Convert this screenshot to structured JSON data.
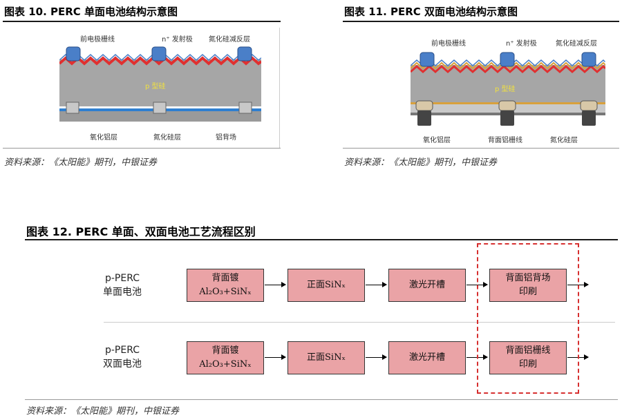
{
  "fig10": {
    "title": "图表 10. PERC 单面电池结构示意图",
    "labels": {
      "front_grid": "前电极栅线",
      "emitter": "n⁺ 发射极",
      "arc": "氮化硅减反层",
      "p_base": "p 型硅",
      "alox": "氧化铝层",
      "sinx": "氮化硅层",
      "al_bsf": "铝背场"
    },
    "source": "资料来源：《太阳能》期刊，中银证券"
  },
  "fig11": {
    "title": "图表 11. PERC 双面电池结构示意图",
    "labels": {
      "front_grid": "前电极栅线",
      "emitter": "n⁺ 发射极",
      "arc": "氮化硅减反层",
      "p_base": "p 型硅",
      "alox": "氧化铝层",
      "back_grid": "背面铝栅线",
      "sinx": "氮化硅层"
    },
    "source": "资料来源：《太阳能》期刊，中银证券"
  },
  "fig12": {
    "title": "图表 12. PERC 单面、双面电池工艺流程区别",
    "rows": [
      {
        "label_line1": "p-PERC",
        "label_line2": "单面电池",
        "steps": [
          {
            "line1": "背面镀",
            "line2": "Al₂O₃+SiNₓ"
          },
          {
            "line1": "正面SiNₓ",
            "line2": ""
          },
          {
            "line1": "激光开槽",
            "line2": ""
          },
          {
            "line1": "背面铝背场",
            "line2": "印刷"
          }
        ]
      },
      {
        "label_line1": "p-PERC",
        "label_line2": "双面电池",
        "steps": [
          {
            "line1": "背面镀",
            "line2": "Al₂O₃+SiNₓ"
          },
          {
            "line1": "正面SiNₓ",
            "line2": ""
          },
          {
            "line1": "激光开槽",
            "line2": ""
          },
          {
            "line1": "背面铝栅线",
            "line2": "印刷"
          }
        ]
      }
    ],
    "source": "资料来源：《太阳能》期刊，中银证券"
  },
  "colors": {
    "box_fill": "#eaa3a6",
    "highlight_border": "#d62f2f",
    "emitter_red": "#e03030",
    "grid_blue": "#4a7fc8",
    "silicon_gray": "#a6a6a6",
    "p_label_yellow": "#f0e040"
  }
}
